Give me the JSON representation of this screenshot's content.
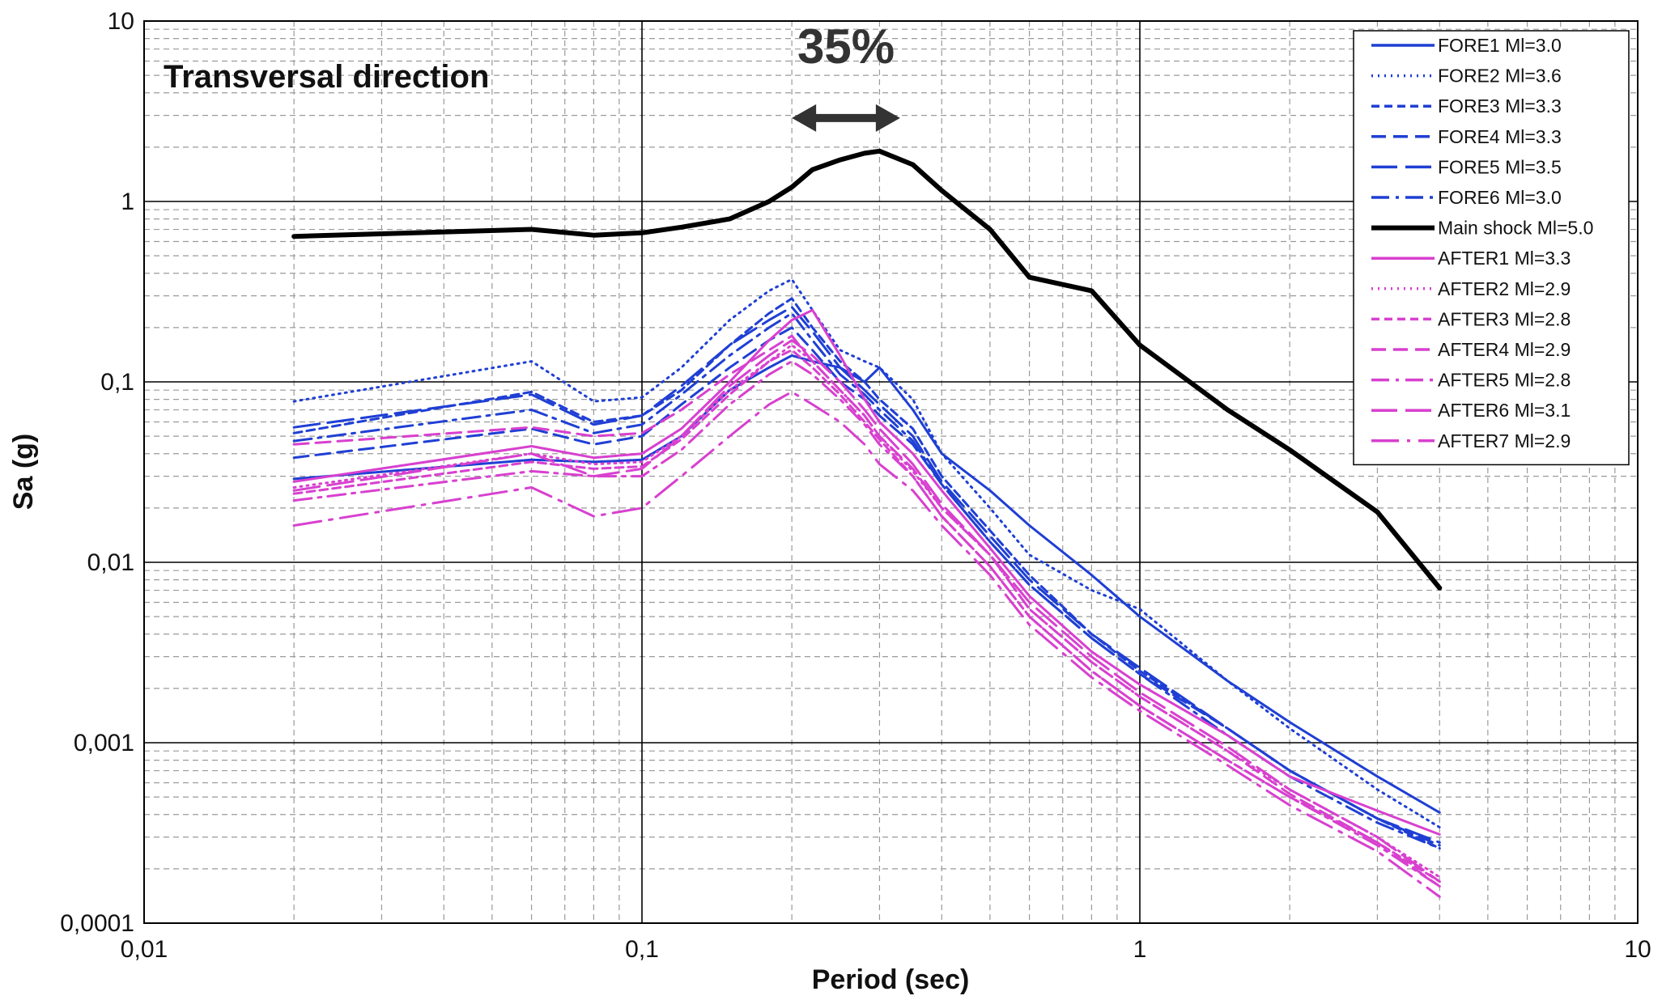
{
  "chart_data": {
    "type": "line",
    "panel_label": "Transversal direction",
    "xlabel": "Period (sec)",
    "ylabel": "Sa (g)",
    "xscale": "log",
    "yscale": "log",
    "xlim": [
      0.01,
      10
    ],
    "ylim": [
      0.0001,
      10
    ],
    "grid": true,
    "legend_position": "top-right",
    "x_tick_labels": [
      "0,01",
      "0,1",
      "1",
      "10"
    ],
    "y_tick_labels": [
      "0,0001",
      "0,001",
      "0,01",
      "0,1",
      "1",
      "10"
    ],
    "annotation": {
      "text": "35%",
      "x_range": [
        0.2,
        0.33
      ],
      "y": 2.9
    },
    "x": [
      0.02,
      0.06,
      0.08,
      0.1,
      0.12,
      0.15,
      0.18,
      0.2,
      0.22,
      0.25,
      0.28,
      0.3,
      0.35,
      0.4,
      0.5,
      0.6,
      0.8,
      1.0,
      1.5,
      2.0,
      3.0,
      4.0
    ],
    "series": [
      {
        "name": "FORE1 Ml=3.0",
        "color": "#1f3fd4",
        "dash": "solid",
        "width": 3,
        "values": [
          0.029,
          0.037,
          0.036,
          0.037,
          0.05,
          0.09,
          0.12,
          0.14,
          0.13,
          0.12,
          0.1,
          0.12,
          0.07,
          0.04,
          0.025,
          0.016,
          0.0085,
          0.005,
          0.0022,
          0.0013,
          0.00065,
          0.00041
        ]
      },
      {
        "name": "FORE2 Ml=3.6",
        "color": "#1f3fd4",
        "dash": "dot",
        "width": 3,
        "values": [
          0.078,
          0.13,
          0.078,
          0.082,
          0.12,
          0.22,
          0.32,
          0.37,
          0.25,
          0.15,
          0.13,
          0.12,
          0.08,
          0.04,
          0.02,
          0.011,
          0.007,
          0.0055,
          0.0022,
          0.0012,
          0.00055,
          0.00034
        ]
      },
      {
        "name": "FORE3 Ml=3.3",
        "color": "#1f3fd4",
        "dash": "shortdash",
        "width": 3,
        "values": [
          0.052,
          0.088,
          0.06,
          0.065,
          0.09,
          0.16,
          0.24,
          0.29,
          0.2,
          0.13,
          0.1,
          0.08,
          0.055,
          0.03,
          0.015,
          0.0085,
          0.004,
          0.0025,
          0.0012,
          0.0007,
          0.00038,
          0.00026
        ]
      },
      {
        "name": "FORE4 Ml=3.3",
        "color": "#1f3fd4",
        "dash": "dash",
        "width": 3,
        "values": [
          0.038,
          0.055,
          0.045,
          0.05,
          0.075,
          0.12,
          0.17,
          0.2,
          0.15,
          0.1,
          0.08,
          0.065,
          0.045,
          0.027,
          0.013,
          0.0075,
          0.0038,
          0.0024,
          0.0012,
          0.0007,
          0.00038,
          0.00027
        ]
      },
      {
        "name": "FORE5 Ml=3.5",
        "color": "#1f3fd4",
        "dash": "longdash",
        "width": 3,
        "values": [
          0.056,
          0.085,
          0.058,
          0.065,
          0.095,
          0.16,
          0.22,
          0.26,
          0.19,
          0.12,
          0.09,
          0.075,
          0.05,
          0.028,
          0.014,
          0.008,
          0.004,
          0.0026,
          0.0012,
          0.0007,
          0.00038,
          0.00028
        ]
      },
      {
        "name": "FORE6 Ml=3.0",
        "color": "#1f3fd4",
        "dash": "dashdot",
        "width": 3,
        "values": [
          0.047,
          0.07,
          0.052,
          0.058,
          0.085,
          0.14,
          0.2,
          0.24,
          0.17,
          0.11,
          0.085,
          0.07,
          0.047,
          0.027,
          0.013,
          0.0075,
          0.0038,
          0.0024,
          0.0011,
          0.00065,
          0.00036,
          0.00026
        ]
      },
      {
        "name": "Main shock Ml=5.0",
        "color": "#000000",
        "dash": "solid",
        "width": 6,
        "values": [
          0.64,
          0.7,
          0.65,
          0.67,
          0.72,
          0.8,
          1.0,
          1.2,
          1.5,
          1.7,
          1.85,
          1.9,
          1.6,
          1.15,
          0.7,
          0.38,
          0.32,
          0.16,
          0.07,
          0.042,
          0.019,
          0.0072
        ]
      },
      {
        "name": "AFTER1 Ml=3.3",
        "color": "#d840cf",
        "dash": "solid",
        "width": 3,
        "values": [
          0.028,
          0.044,
          0.038,
          0.04,
          0.055,
          0.1,
          0.17,
          0.22,
          0.25,
          0.14,
          0.08,
          0.06,
          0.04,
          0.025,
          0.012,
          0.0065,
          0.0032,
          0.0021,
          0.0011,
          0.00065,
          0.00042,
          0.00031
        ]
      },
      {
        "name": "AFTER2 Ml=2.9",
        "color": "#d840cf",
        "dash": "dot",
        "width": 3,
        "values": [
          0.026,
          0.04,
          0.035,
          0.036,
          0.05,
          0.09,
          0.13,
          0.16,
          0.13,
          0.09,
          0.065,
          0.05,
          0.032,
          0.02,
          0.011,
          0.0055,
          0.0028,
          0.0018,
          0.0009,
          0.00055,
          0.0003,
          0.00018
        ]
      },
      {
        "name": "AFTER3 Ml=2.8",
        "color": "#d840cf",
        "dash": "shortdash",
        "width": 3,
        "values": [
          0.024,
          0.036,
          0.033,
          0.034,
          0.048,
          0.085,
          0.13,
          0.15,
          0.12,
          0.085,
          0.06,
          0.048,
          0.03,
          0.018,
          0.0095,
          0.005,
          0.0025,
          0.0016,
          0.0008,
          0.0005,
          0.00028,
          0.00017
        ]
      },
      {
        "name": "AFTER4 Ml=2.9",
        "color": "#d840cf",
        "dash": "dash",
        "width": 3,
        "values": [
          0.045,
          0.056,
          0.05,
          0.052,
          0.07,
          0.11,
          0.15,
          0.18,
          0.13,
          0.09,
          0.065,
          0.05,
          0.033,
          0.02,
          0.011,
          0.0055,
          0.0028,
          0.0018,
          0.0009,
          0.00052,
          0.00028,
          0.00016
        ]
      },
      {
        "name": "AFTER5 Ml=2.8",
        "color": "#d840cf",
        "dash": "dashdot",
        "width": 3,
        "values": [
          0.022,
          0.032,
          0.03,
          0.03,
          0.042,
          0.075,
          0.11,
          0.13,
          0.11,
          0.08,
          0.058,
          0.045,
          0.03,
          0.018,
          0.0095,
          0.005,
          0.0025,
          0.0016,
          0.0008,
          0.0005,
          0.00027,
          0.00016
        ]
      },
      {
        "name": "AFTER6 Ml=3.1",
        "color": "#d840cf",
        "dash": "longdash",
        "width": 3,
        "values": [
          0.025,
          0.04,
          0.03,
          0.033,
          0.05,
          0.095,
          0.14,
          0.17,
          0.14,
          0.1,
          0.07,
          0.055,
          0.035,
          0.021,
          0.011,
          0.006,
          0.003,
          0.0019,
          0.00095,
          0.00055,
          0.0003,
          0.00017
        ]
      },
      {
        "name": "AFTER7 Ml=2.9",
        "color": "#d840cf",
        "dash": "longdashdot",
        "width": 3,
        "values": [
          0.016,
          0.026,
          0.018,
          0.02,
          0.03,
          0.05,
          0.075,
          0.088,
          0.075,
          0.06,
          0.045,
          0.035,
          0.025,
          0.016,
          0.0085,
          0.0045,
          0.0023,
          0.0015,
          0.00075,
          0.00045,
          0.00025,
          0.00014
        ]
      }
    ]
  }
}
